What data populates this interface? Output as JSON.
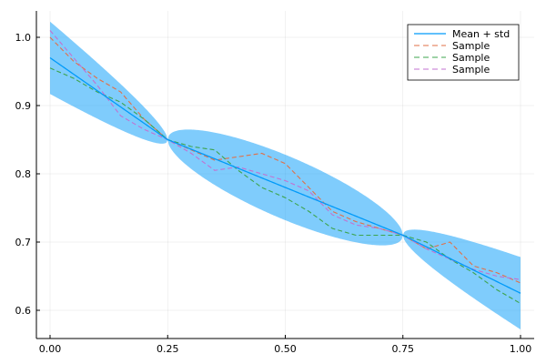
{
  "chart_data": {
    "type": "line",
    "title": "",
    "xlabel": "",
    "ylabel": "",
    "xlim": [
      -0.03,
      1.03
    ],
    "ylim": [
      0.56,
      1.04
    ],
    "grid": true,
    "legend_position": "top-right",
    "xticks": [
      0,
      0.25,
      0.5,
      0.75,
      1.0
    ],
    "xtick_labels": [
      "0.00",
      "0.25",
      "0.50",
      "0.75",
      "1.00"
    ],
    "yticks": [
      0.6,
      0.7,
      0.8,
      0.9,
      1.0
    ],
    "ytick_labels": [
      "0.6",
      "0.7",
      "0.8",
      "0.9",
      "1.0"
    ],
    "mean": {
      "name": "Mean + std",
      "color": "#009af9",
      "knots_x": [
        0,
        0.25,
        0.75,
        1.0
      ],
      "knots_y": [
        0.97,
        0.85,
        0.71,
        0.625
      ],
      "std_at_ends": 0.053,
      "std_mid_max": 0.048
    },
    "x": [
      0,
      0.05,
      0.1,
      0.15,
      0.2,
      0.25,
      0.3,
      0.35,
      0.4,
      0.45,
      0.5,
      0.55,
      0.6,
      0.65,
      0.7,
      0.75,
      0.8,
      0.85,
      0.9,
      0.95,
      1.0
    ],
    "series": [
      {
        "name": "Sample",
        "color": "#e26f46",
        "values": [
          1.0,
          0.965,
          0.94,
          0.92,
          0.88,
          0.85,
          0.835,
          0.82,
          0.825,
          0.83,
          0.815,
          0.78,
          0.745,
          0.73,
          0.72,
          0.71,
          0.69,
          0.7,
          0.665,
          0.655,
          0.64
        ]
      },
      {
        "name": "Sample",
        "color": "#3da44d",
        "values": [
          0.955,
          0.94,
          0.92,
          0.905,
          0.88,
          0.85,
          0.84,
          0.835,
          0.805,
          0.78,
          0.765,
          0.745,
          0.72,
          0.71,
          0.71,
          0.71,
          0.7,
          0.675,
          0.655,
          0.63,
          0.61
        ]
      },
      {
        "name": "Sample",
        "color": "#c271d2",
        "values": [
          1.01,
          0.97,
          0.93,
          0.885,
          0.865,
          0.85,
          0.83,
          0.805,
          0.81,
          0.8,
          0.79,
          0.775,
          0.74,
          0.725,
          0.72,
          0.71,
          0.69,
          0.675,
          0.66,
          0.65,
          0.645
        ]
      }
    ]
  }
}
